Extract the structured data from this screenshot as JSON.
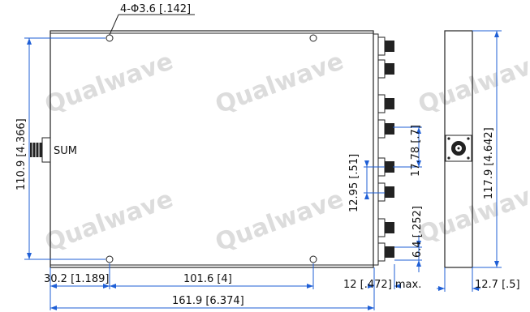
{
  "watermark": "Qualwave",
  "labels": {
    "hole_spec": "4-Φ3.6 [.142]",
    "sum_label": "SUM",
    "height_left": "110.9 [4.366]",
    "dim_30_2": "30.2 [1.189]",
    "dim_101_6": "101.6 [4]",
    "dim_161_9": "161.9 [6.374]",
    "dim_12_max": "12 [.472] max.",
    "dim_17_78": "17.78 [.7]",
    "dim_12_95": "12.95 [.51]",
    "dim_6_4": "6.4 [.252]",
    "height_right": "117.9 [4.642]",
    "dim_12_7": "12.7 [.5]"
  }
}
